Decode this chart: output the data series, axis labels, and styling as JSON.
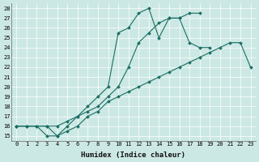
{
  "xlabel": "Humidex (Indice chaleur)",
  "bg_color": "#cce8e4",
  "line_color": "#1a6e64",
  "xlim": [
    -0.5,
    23.5
  ],
  "ylim": [
    14.5,
    28.5
  ],
  "xticks": [
    0,
    1,
    2,
    3,
    4,
    5,
    6,
    7,
    8,
    9,
    10,
    11,
    12,
    13,
    14,
    15,
    16,
    17,
    18,
    19,
    20,
    21,
    22,
    23
  ],
  "yticks": [
    15,
    16,
    17,
    18,
    19,
    20,
    21,
    22,
    23,
    24,
    25,
    26,
    27,
    28
  ],
  "series": [
    {
      "x": [
        0,
        1,
        2,
        3,
        4,
        5,
        6,
        7,
        8,
        9,
        10,
        11,
        12,
        13,
        14,
        15,
        16,
        17,
        18
      ],
      "y": [
        16,
        16,
        16,
        15,
        15,
        16,
        17,
        18,
        19,
        20,
        25.5,
        26,
        27.5,
        28,
        25,
        27,
        27,
        27.5,
        27.5
      ]
    },
    {
      "x": [
        0,
        1,
        2,
        3,
        4,
        5,
        6,
        7,
        8,
        9,
        10,
        11,
        12,
        13,
        14,
        15,
        16,
        17,
        18,
        19,
        20,
        21,
        22,
        23
      ],
      "y": [
        16,
        16,
        16,
        16,
        16,
        16.5,
        17,
        17.5,
        18,
        19,
        20,
        22,
        24.5,
        25.5,
        26.5,
        27,
        27,
        24.5,
        24,
        24,
        null,
        null,
        null,
        null
      ]
    },
    {
      "x": [
        0,
        3,
        4,
        5,
        6,
        7,
        8,
        9,
        10,
        11,
        12,
        13,
        14,
        15,
        16,
        17,
        18,
        19,
        20,
        21,
        22,
        23
      ],
      "y": [
        16,
        16,
        15,
        15.5,
        16,
        17,
        17.5,
        18.5,
        19,
        19.5,
        20,
        20.5,
        21,
        21.5,
        22,
        22.5,
        23,
        23.5,
        24,
        24.5,
        24.5,
        22
      ]
    }
  ]
}
